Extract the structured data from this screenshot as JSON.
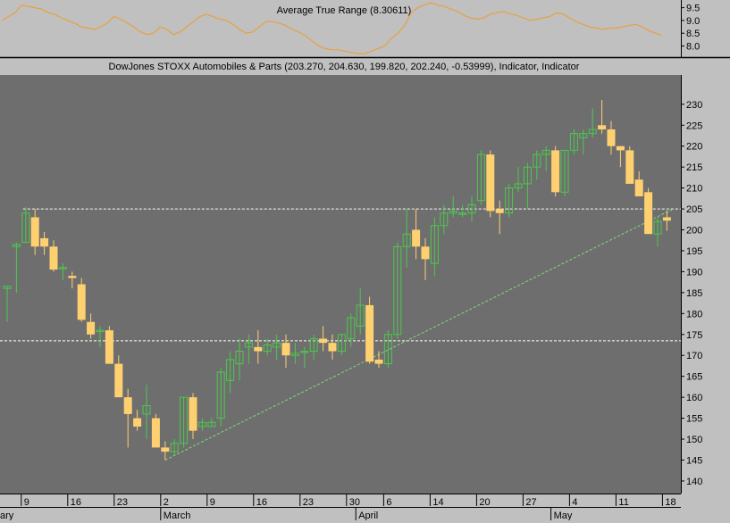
{
  "colors": {
    "background": "#c0c0c0",
    "plot_background": "#6e6e6e",
    "atr_line": "#e8a040",
    "up_candle": "#4cc94c",
    "down_candle": "#ffd070",
    "trend_line": "#7fdc7f",
    "dashed_level": "#ffffff"
  },
  "atr_panel": {
    "title": "Average True Range (8.30611)",
    "ylim": [
      7.6,
      9.8
    ],
    "ticks": [
      "9.5",
      "9.0",
      "8.5",
      "8.0"
    ],
    "tick_values": [
      9.5,
      9.0,
      8.5,
      8.0
    ],
    "values": [
      9.0,
      9.15,
      9.3,
      9.6,
      9.55,
      9.5,
      9.45,
      9.3,
      9.25,
      9.1,
      9.0,
      8.9,
      8.75,
      8.7,
      8.65,
      8.75,
      8.9,
      9.15,
      9.05,
      8.9,
      8.75,
      8.55,
      8.45,
      8.5,
      8.75,
      8.65,
      8.45,
      8.55,
      8.75,
      8.95,
      9.15,
      9.25,
      9.15,
      9.05,
      9.0,
      8.85,
      8.65,
      8.5,
      8.55,
      8.75,
      8.95,
      8.95,
      8.9,
      8.8,
      8.65,
      8.55,
      8.4,
      8.2,
      8.0,
      7.9,
      7.85,
      7.85,
      7.8,
      7.75,
      7.7,
      7.7,
      7.8,
      7.9,
      8.0,
      8.3,
      8.5,
      8.8,
      9.3,
      9.5,
      9.6,
      9.7,
      9.6,
      9.55,
      9.45,
      9.35,
      9.2,
      9.1,
      9.05,
      9.1,
      9.25,
      9.3,
      9.35,
      9.25,
      9.2,
      9.1,
      9.0,
      9.05,
      9.1,
      9.15,
      9.3,
      9.25,
      9.1,
      8.95,
      8.85,
      8.75,
      8.7,
      8.65,
      8.7,
      8.7,
      8.75,
      8.8,
      8.85,
      8.75,
      8.6,
      8.5,
      8.4
    ]
  },
  "chart_data": {
    "type": "candlestick",
    "title": "DowJones STOXX Automobiles & Parts (203.270, 204.630, 199.820, 202.240, -0.53999), Indicator, Indicator",
    "ylim": [
      137,
      237
    ],
    "y_ticks": [
      230,
      225,
      220,
      215,
      210,
      205,
      200,
      195,
      190,
      185,
      180,
      175,
      170,
      165,
      160,
      155,
      150,
      145,
      140
    ],
    "day_ticks": [
      "9",
      "16",
      "23",
      "2",
      "9",
      "16",
      "23",
      "30",
      "6",
      "14",
      "20",
      "27",
      "4",
      "11",
      "18"
    ],
    "day_tick_index": [
      2,
      7,
      12,
      17,
      22,
      27,
      32,
      37,
      41,
      46,
      51,
      56,
      61,
      66,
      71
    ],
    "month_labels": [
      "ary",
      "March",
      "April",
      "May"
    ],
    "month_index": [
      0,
      17,
      38,
      59
    ],
    "n_slots": 72,
    "candles": [
      [
        186,
        186.5,
        178,
        186.5
      ],
      [
        196,
        197,
        185,
        196.5
      ],
      [
        197,
        205.5,
        197,
        204
      ],
      [
        203,
        205,
        194,
        196
      ],
      [
        198,
        199.5,
        194,
        196
      ],
      [
        196,
        197.5,
        190,
        190.5
      ],
      [
        191,
        192,
        188,
        191
      ],
      [
        189,
        190,
        186,
        188.5
      ],
      [
        187,
        188.5,
        178,
        178.5
      ],
      [
        178,
        180,
        174,
        175
      ],
      [
        176,
        177,
        172,
        176
      ],
      [
        176,
        177,
        168,
        168
      ],
      [
        168,
        170,
        160,
        160
      ],
      [
        160,
        162,
        148,
        156
      ],
      [
        155,
        157,
        152,
        153
      ],
      [
        156,
        163,
        150,
        158
      ],
      [
        155,
        156,
        148,
        148
      ],
      [
        148,
        149.5,
        145,
        147
      ],
      [
        147,
        150,
        146,
        149
      ],
      [
        149,
        160,
        148,
        160
      ],
      [
        160,
        161,
        150,
        152
      ],
      [
        153,
        155,
        152,
        154
      ],
      [
        153,
        155,
        153,
        154
      ],
      [
        155,
        167,
        153,
        166
      ],
      [
        164,
        171,
        161,
        169
      ],
      [
        168,
        174,
        164,
        171
      ],
      [
        172,
        175,
        168,
        173
      ],
      [
        172,
        176,
        168,
        171
      ],
      [
        171,
        174,
        170,
        172.5
      ],
      [
        172,
        175,
        169,
        173
      ],
      [
        173,
        175,
        167,
        170
      ],
      [
        170,
        173,
        168,
        170.5
      ],
      [
        171,
        172,
        167,
        171
      ],
      [
        171,
        175,
        169,
        174
      ],
      [
        174,
        177,
        171,
        173
      ],
      [
        173,
        175,
        169,
        171
      ],
      [
        171,
        175,
        170,
        175
      ],
      [
        174,
        180,
        172,
        179
      ],
      [
        177,
        186,
        175,
        182
      ],
      [
        182,
        184,
        168,
        168.5
      ],
      [
        169,
        171,
        167,
        168
      ],
      [
        168,
        176,
        167,
        175
      ],
      [
        175,
        197,
        174,
        196
      ],
      [
        196,
        205,
        191,
        199
      ],
      [
        200,
        205,
        193,
        196
      ],
      [
        196,
        198,
        188,
        193
      ],
      [
        192,
        203,
        189,
        201
      ],
      [
        201,
        206,
        199,
        204
      ],
      [
        204,
        208,
        203,
        204.5
      ],
      [
        204,
        206,
        203,
        204
      ],
      [
        204,
        208,
        202,
        206
      ],
      [
        207,
        219,
        206,
        218
      ],
      [
        218,
        219,
        203,
        204.5
      ],
      [
        205,
        207,
        199,
        204
      ],
      [
        204,
        211,
        203,
        210
      ],
      [
        210,
        215,
        209,
        211
      ],
      [
        211,
        216,
        205,
        215
      ],
      [
        215,
        219,
        212,
        218
      ],
      [
        218,
        220,
        214,
        219
      ],
      [
        219,
        220,
        208,
        209
      ],
      [
        209,
        219,
        208,
        219
      ],
      [
        219,
        224,
        218,
        223
      ],
      [
        222,
        224,
        218,
        223
      ],
      [
        223,
        229,
        222,
        224
      ],
      [
        225,
        231,
        223,
        224
      ],
      [
        224,
        226,
        218,
        220
      ],
      [
        220,
        220,
        215,
        219
      ],
      [
        219,
        220,
        211,
        211
      ],
      [
        212,
        214,
        208,
        208
      ],
      [
        209,
        210,
        199,
        199
      ],
      [
        199,
        203,
        196,
        202
      ],
      [
        203,
        204.6,
        199.8,
        202.2
      ]
    ],
    "reference_lines": [
      {
        "kind": "horizontal",
        "value": 205
      },
      {
        "kind": "horizontal",
        "value": 173.5
      }
    ],
    "trend_line": {
      "from": [
        17,
        145
      ],
      "to": [
        71.7,
        205
      ]
    }
  }
}
